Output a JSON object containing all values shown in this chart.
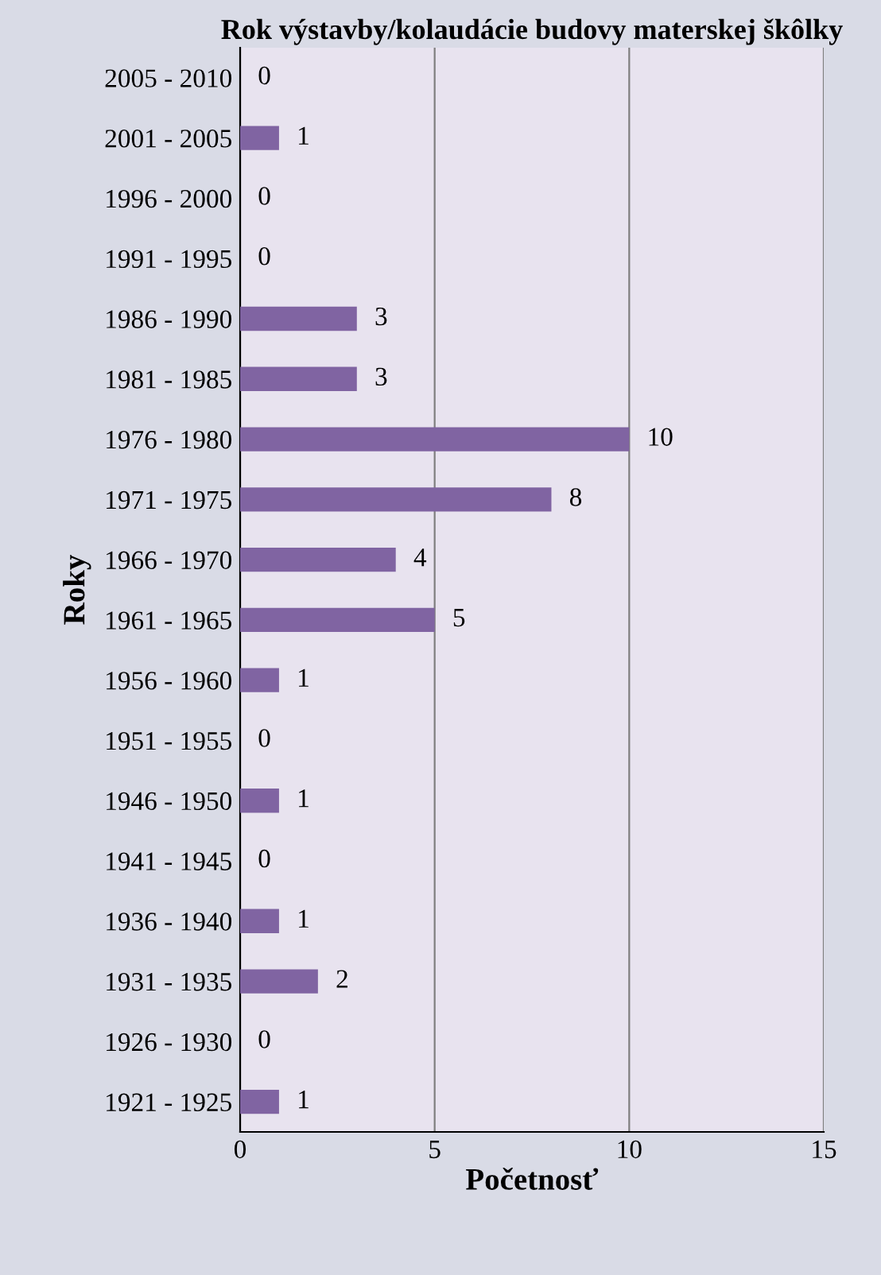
{
  "chart_data": {
    "type": "bar",
    "orientation": "horizontal",
    "title": "Rok výstavby/kolaudácie budovy materskej škôlky",
    "xlabel": "Početnosť",
    "ylabel": "Roky",
    "categories": [
      "2005 - 2010",
      "2001 - 2005",
      "1996 - 2000",
      "1991 - 1995",
      "1986 - 1990",
      "1981 - 1985",
      "1976 - 1980",
      "1971 - 1975",
      "1966 - 1970",
      "1961 - 1965",
      "1956 - 1960",
      "1951 - 1955",
      "1946 - 1950",
      "1941 - 1945",
      "1936 - 1940",
      "1931 - 1935",
      "1926 - 1930",
      "1921 - 1925"
    ],
    "values": [
      0,
      1,
      0,
      0,
      3,
      3,
      10,
      8,
      4,
      5,
      1,
      0,
      1,
      0,
      1,
      2,
      0,
      1
    ],
    "color": "#8064a2",
    "xlim": [
      0,
      15
    ],
    "xticks": [
      0,
      5,
      10,
      15
    ],
    "grid": "x",
    "data_labels": true
  }
}
